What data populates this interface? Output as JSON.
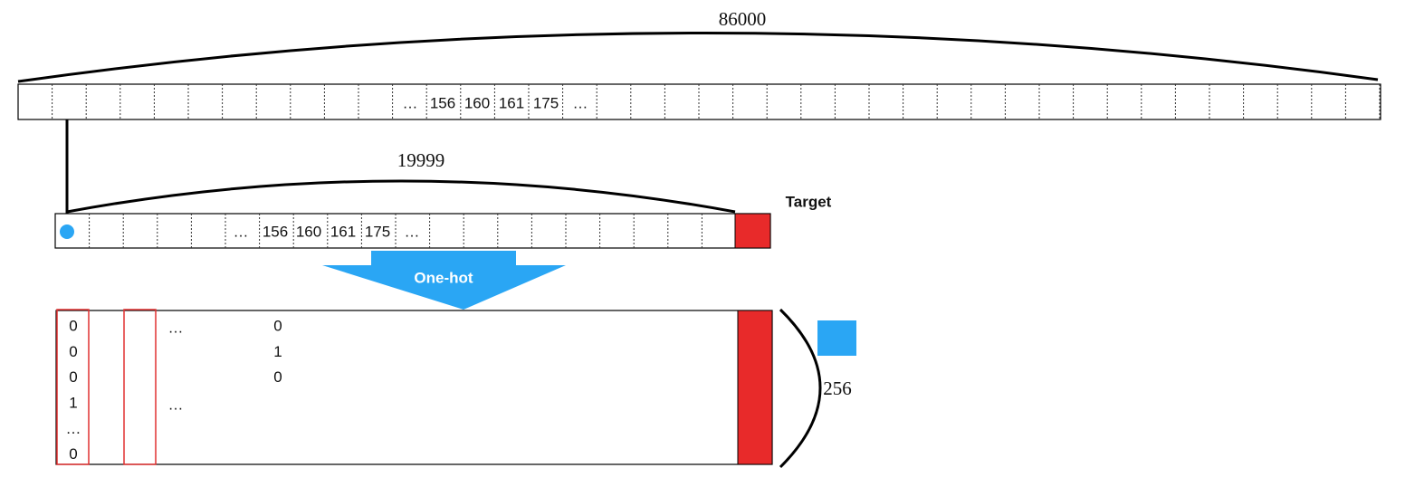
{
  "top_strip": {
    "length_label": "86000",
    "cells": [
      "…",
      "156",
      "160",
      "161",
      "175",
      "…"
    ]
  },
  "sample_strip": {
    "length_label": "19999",
    "cells": [
      "…",
      "156",
      "160",
      "161",
      "175",
      "…"
    ],
    "target_label": "Target"
  },
  "encoding": {
    "label": "One-hot"
  },
  "one_hot_matrix": {
    "height_label": "256",
    "column_1": [
      "0",
      "0",
      "0",
      "1",
      "…",
      "0"
    ],
    "column_4": [
      "…",
      "…"
    ],
    "column_7": [
      "0",
      "1",
      "0"
    ]
  }
}
